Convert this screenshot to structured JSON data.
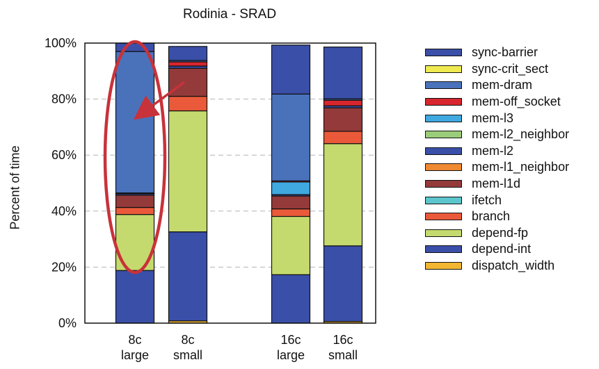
{
  "chart_data": {
    "type": "bar",
    "stacked": true,
    "title": "Rodinia  -  SRAD",
    "ylabel": "Percent of time",
    "xlabel": "",
    "ylim": [
      0,
      100
    ],
    "y_ticks": [
      "0%",
      "20%",
      "40%",
      "60%",
      "80%",
      "100%"
    ],
    "grid": "horizontal dashed",
    "legend_position": "right",
    "categories": [
      [
        "8c",
        "large"
      ],
      [
        "8c",
        "small"
      ],
      [
        "16c",
        "large"
      ],
      [
        "16c",
        "small"
      ]
    ],
    "series": [
      {
        "name": "dispatch_width",
        "color": "#f2b632",
        "values": [
          0.0,
          0.8,
          0.0,
          0.6
        ]
      },
      {
        "name": "depend-int",
        "color": "#3a4fa8",
        "values": [
          18.8,
          31.8,
          17.3,
          27.0
        ]
      },
      {
        "name": "depend-fp",
        "color": "#c5da6e",
        "values": [
          20.0,
          43.2,
          20.8,
          36.5
        ]
      },
      {
        "name": "branch",
        "color": "#ea5a3a",
        "values": [
          2.5,
          5.2,
          2.7,
          4.4
        ]
      },
      {
        "name": "ifetch",
        "color": "#5cc6cc",
        "values": [
          0.0,
          0.0,
          0.0,
          0.0
        ]
      },
      {
        "name": "mem-l1d",
        "color": "#943a3a",
        "values": [
          4.4,
          10.0,
          4.6,
          8.4
        ]
      },
      {
        "name": "mem-l1_neighbor",
        "color": "#f08a32",
        "values": [
          0.0,
          0.0,
          0.0,
          0.0
        ]
      },
      {
        "name": "mem-l2",
        "color": "#3a4fa8",
        "values": [
          0.5,
          0.8,
          0.5,
          0.7
        ]
      },
      {
        "name": "mem-l2_neighbor",
        "color": "#9acd7a",
        "values": [
          0.0,
          0.0,
          0.0,
          0.0
        ]
      },
      {
        "name": "mem-l3",
        "color": "#3fa9e0",
        "values": [
          0.0,
          0.0,
          4.5,
          0.0
        ]
      },
      {
        "name": "mem-off_socket",
        "color": "#d7262e",
        "values": [
          0.3,
          1.5,
          0.4,
          2.0
        ]
      },
      {
        "name": "mem-dram",
        "color": "#4a72bb",
        "values": [
          50.5,
          0.5,
          31.0,
          0.5
        ]
      },
      {
        "name": "sync-crit_sect",
        "color": "#eeea50",
        "values": [
          0.0,
          0.0,
          0.0,
          0.0
        ]
      },
      {
        "name": "sync-barrier",
        "color": "#3a4fa8",
        "values": [
          3.0,
          5.0,
          17.5,
          18.5
        ]
      }
    ]
  },
  "legend": {
    "items": [
      {
        "label": "sync-barrier",
        "color": "#3a4fa8"
      },
      {
        "label": "sync-crit_sect",
        "color": "#eeea50"
      },
      {
        "label": "mem-dram",
        "color": "#4a72bb"
      },
      {
        "label": "mem-off_socket",
        "color": "#d7262e"
      },
      {
        "label": "mem-l3",
        "color": "#3fa9e0"
      },
      {
        "label": "mem-l2_neighbor",
        "color": "#9acd7a"
      },
      {
        "label": "mem-l2",
        "color": "#3a4fa8"
      },
      {
        "label": "mem-l1_neighbor",
        "color": "#f08a32"
      },
      {
        "label": "mem-l1d",
        "color": "#943a3a"
      },
      {
        "label": "ifetch",
        "color": "#5cc6cc"
      },
      {
        "label": "branch",
        "color": "#ea5a3a"
      },
      {
        "label": "depend-fp",
        "color": "#c5da6e"
      },
      {
        "label": "depend-int",
        "color": "#3a4fa8"
      },
      {
        "label": "dispatch_width",
        "color": "#f2b632"
      }
    ]
  },
  "annotation": {
    "type": "ellipse-with-arrow",
    "target_category": [
      "8c",
      "large"
    ],
    "color": "#c8323a"
  }
}
